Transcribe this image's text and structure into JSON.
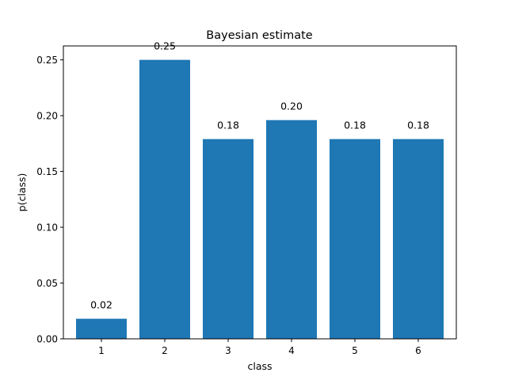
{
  "chart_data": {
    "type": "bar",
    "title": "Bayesian estimate",
    "xlabel": "class",
    "ylabel": "p(class)",
    "categories": [
      "1",
      "2",
      "3",
      "4",
      "5",
      "6"
    ],
    "values": [
      0.018,
      0.25,
      0.179,
      0.196,
      0.179,
      0.179
    ],
    "data_labels": [
      "0.02",
      "0.25",
      "0.18",
      "0.20",
      "0.18",
      "0.18"
    ],
    "ylim": [
      0,
      0.2625
    ],
    "y_ticks": [
      0.0,
      0.05,
      0.1,
      0.15,
      0.2,
      0.25
    ],
    "y_tick_labels": [
      "0.00",
      "0.05",
      "0.10",
      "0.15",
      "0.20",
      "0.25"
    ],
    "grid": false,
    "bar_color": "#1f77b4"
  }
}
